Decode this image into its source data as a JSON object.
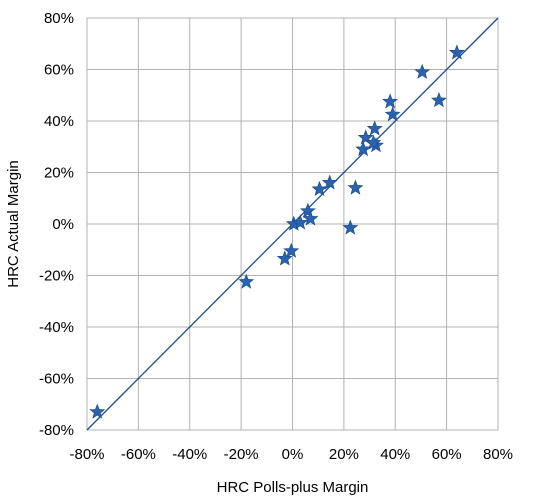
{
  "chart_data": {
    "type": "scatter",
    "title": "",
    "xlabel": "HRC Polls-plus Margin",
    "ylabel": "HRC Actual Margin",
    "xlim": [
      -80,
      80
    ],
    "ylim": [
      -80,
      80
    ],
    "x_ticks": [
      "-80%",
      "-60%",
      "-40%",
      "-20%",
      "0%",
      "20%",
      "40%",
      "60%",
      "80%"
    ],
    "y_ticks": [
      "80%",
      "60%",
      "40%",
      "20%",
      "0%",
      "-20%",
      "-40%",
      "-60%",
      "-80%"
    ],
    "grid": true,
    "marker": "star",
    "colors": {
      "marker": "#2a62ad",
      "marker_edge": "#1a4a8a",
      "line": "#1f4e8c",
      "grid": "#b3b3b3"
    },
    "reference_line": {
      "type": "identity",
      "from": [
        -80,
        -80
      ],
      "to": [
        80,
        80
      ]
    },
    "points": [
      {
        "x": -76,
        "y": -73
      },
      {
        "x": -18,
        "y": -22.5
      },
      {
        "x": -3,
        "y": -13.5
      },
      {
        "x": -0.5,
        "y": -10.5
      },
      {
        "x": 0.5,
        "y": 0
      },
      {
        "x": 3,
        "y": 0.5
      },
      {
        "x": 6,
        "y": 5
      },
      {
        "x": 7,
        "y": 2
      },
      {
        "x": 10.5,
        "y": 13.5
      },
      {
        "x": 14.5,
        "y": 16
      },
      {
        "x": 22.5,
        "y": -1.5
      },
      {
        "x": 24.5,
        "y": 14
      },
      {
        "x": 27.5,
        "y": 29
      },
      {
        "x": 28.5,
        "y": 33.5
      },
      {
        "x": 32,
        "y": 37
      },
      {
        "x": 32.5,
        "y": 30.5
      },
      {
        "x": 31.5,
        "y": 31.5
      },
      {
        "x": 38,
        "y": 47.5
      },
      {
        "x": 39,
        "y": 42.5
      },
      {
        "x": 50.5,
        "y": 59
      },
      {
        "x": 57,
        "y": 48
      },
      {
        "x": 64,
        "y": 66.5
      }
    ]
  }
}
